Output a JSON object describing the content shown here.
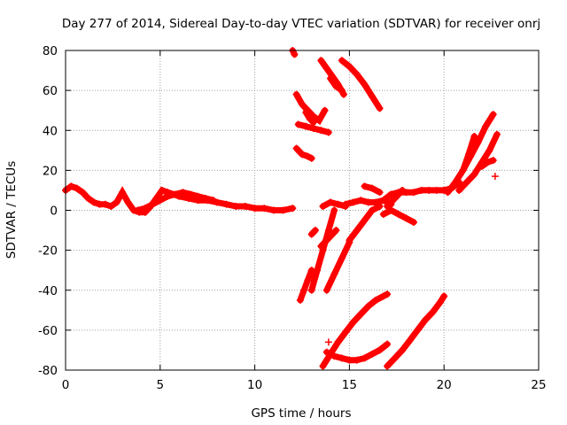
{
  "chart_data": {
    "type": "scatter",
    "title": "Day 277 of 2014, Sidereal Day-to-day VTEC variation (SDTVAR) for receiver onrj",
    "xlabel": "GPS time / hours",
    "ylabel": "SDTVAR / TECUs",
    "xlim": [
      0,
      25
    ],
    "ylim": [
      -80,
      80
    ],
    "xticks": [
      0,
      5,
      10,
      15,
      20,
      25
    ],
    "yticks": [
      -80,
      -60,
      -40,
      -20,
      0,
      20,
      40,
      60,
      80
    ],
    "grid": true,
    "marker": "+",
    "color": "#ff0000",
    "series": [
      {
        "x": [
          0,
          0.3,
          0.6,
          0.9,
          1.2,
          1.5,
          1.8,
          2.1,
          2.4,
          2.7,
          3.0,
          3.3,
          3.6,
          3.9,
          4.2,
          4.5,
          4.8,
          5.1,
          5.4,
          5.7,
          6.0,
          6.5,
          7.0,
          7.5,
          8.0,
          8.5,
          9.0,
          9.5,
          10.0,
          10.5,
          11.0,
          11.5,
          12.0
        ],
        "y": [
          10,
          12,
          11,
          9,
          6,
          4,
          3,
          3,
          2,
          4,
          9,
          4,
          0,
          -1,
          -1,
          2,
          6,
          10,
          9,
          8,
          7,
          6,
          5,
          5,
          4,
          3,
          2,
          2,
          1,
          1,
          0,
          0,
          1
        ]
      },
      {
        "x": [
          3.8,
          4.2,
          4.6,
          5.0,
          5.4,
          5.8,
          6.2,
          6.6,
          7.0,
          7.4,
          7.8
        ],
        "y": [
          0,
          1,
          3,
          5,
          7,
          8,
          9,
          8,
          7,
          6,
          5
        ]
      },
      {
        "x": [
          12.2,
          12.5,
          12.8,
          13.1,
          13.4,
          13.7
        ],
        "y": [
          58,
          53,
          50,
          47,
          45,
          50
        ]
      },
      {
        "x": [
          13.5,
          13.8,
          14.1,
          14.4,
          14.7
        ],
        "y": [
          75,
          71,
          67,
          63,
          58
        ]
      },
      {
        "x": [
          14.6,
          15.0,
          15.4,
          15.8,
          16.2,
          16.6
        ],
        "y": [
          75,
          72,
          68,
          63,
          57,
          51
        ]
      },
      {
        "x": [
          14.0,
          14.3,
          14.6
        ],
        "y": [
          66,
          62,
          60
        ]
      },
      {
        "x": [
          12.3,
          12.7,
          13.1,
          13.5,
          13.9
        ],
        "y": [
          43,
          42,
          41,
          40,
          39
        ]
      },
      {
        "x": [
          12.7,
          12.9,
          13.1
        ],
        "y": [
          49,
          46,
          44
        ]
      },
      {
        "x": [
          12.2,
          12.5,
          12.8,
          13.0
        ],
        "y": [
          31,
          28,
          27,
          26
        ]
      },
      {
        "x": [
          12.0,
          12.1
        ],
        "y": [
          80,
          78
        ]
      },
      {
        "x": [
          12.4,
          12.6,
          12.8,
          13.0
        ],
        "y": [
          -45,
          -40,
          -35,
          -30
        ]
      },
      {
        "x": [
          13.0,
          13.3,
          13.6,
          13.9,
          14.2
        ],
        "y": [
          -40,
          -30,
          -20,
          -10,
          0
        ]
      },
      {
        "x": [
          13.8,
          14.2,
          14.6,
          15.0
        ],
        "y": [
          -40,
          -32,
          -24,
          -16
        ]
      },
      {
        "x": [
          13.5,
          13.9,
          14.3
        ],
        "y": [
          -18,
          -14,
          -10
        ]
      },
      {
        "x": [
          13.0,
          13.2
        ],
        "y": [
          -12,
          -10
        ]
      },
      {
        "x": [
          13.6,
          14.0,
          14.4,
          14.8
        ],
        "y": [
          2,
          4,
          3,
          2
        ]
      },
      {
        "x": [
          14.8,
          15.2,
          15.6,
          16.0,
          16.4,
          16.8,
          17.2
        ],
        "y": [
          3,
          4,
          5,
          4,
          4,
          5,
          3
        ]
      },
      {
        "x": [
          15.0,
          15.4,
          15.8,
          16.2,
          16.6
        ],
        "y": [
          -15,
          -10,
          -5,
          0,
          2
        ]
      },
      {
        "x": [
          15.8,
          16.2,
          16.6
        ],
        "y": [
          12,
          11,
          9
        ]
      },
      {
        "x": [
          16.8,
          17.2,
          17.6,
          18.0,
          18.4,
          18.8,
          19.2,
          19.6,
          20.0,
          20.4,
          20.8
        ],
        "y": [
          5,
          8,
          9,
          9,
          9,
          10,
          10,
          10,
          10,
          11,
          14
        ]
      },
      {
        "x": [
          16.8,
          17.2,
          17.6,
          18.0,
          18.4
        ],
        "y": [
          -2,
          0,
          -2,
          -4,
          -6
        ]
      },
      {
        "x": [
          17.0,
          17.4,
          17.8
        ],
        "y": [
          2,
          6,
          10
        ]
      },
      {
        "x": [
          20.2,
          20.6,
          21.0,
          21.4,
          21.8,
          22.2,
          22.6
        ],
        "y": [
          9,
          14,
          20,
          27,
          34,
          42,
          48
        ]
      },
      {
        "x": [
          20.8,
          21.2,
          21.6,
          22.0,
          22.4,
          22.8
        ],
        "y": [
          10,
          14,
          18,
          24,
          30,
          38
        ]
      },
      {
        "x": [
          21.0,
          21.3,
          21.6
        ],
        "y": [
          20,
          28,
          37
        ]
      },
      {
        "x": [
          22.0,
          22.3,
          22.6
        ],
        "y": [
          22,
          24,
          25
        ]
      },
      {
        "x": [
          22.7
        ],
        "y": [
          17
        ]
      },
      {
        "x": [
          13.6,
          14.0,
          14.4,
          14.8,
          15.2,
          15.6,
          16.0,
          16.4,
          16.8,
          17.0
        ],
        "y": [
          -78,
          -72,
          -66,
          -61,
          -56,
          -52,
          -48,
          -45,
          -43,
          -42
        ]
      },
      {
        "x": [
          13.8,
          14.2,
          14.6,
          15.0,
          15.4,
          15.8,
          16.2,
          16.6,
          17.0
        ],
        "y": [
          -71,
          -73,
          -74,
          -75,
          -75,
          -74,
          -72,
          -70,
          -67
        ]
      },
      {
        "x": [
          17.0,
          17.4,
          17.8,
          18.2,
          18.6,
          19.0,
          19.4,
          19.8,
          20.0
        ],
        "y": [
          -78,
          -74,
          -70,
          -65,
          -60,
          -55,
          -51,
          -46,
          -43
        ]
      },
      {
        "x": [
          13.9
        ],
        "y": [
          -66
        ]
      }
    ]
  }
}
